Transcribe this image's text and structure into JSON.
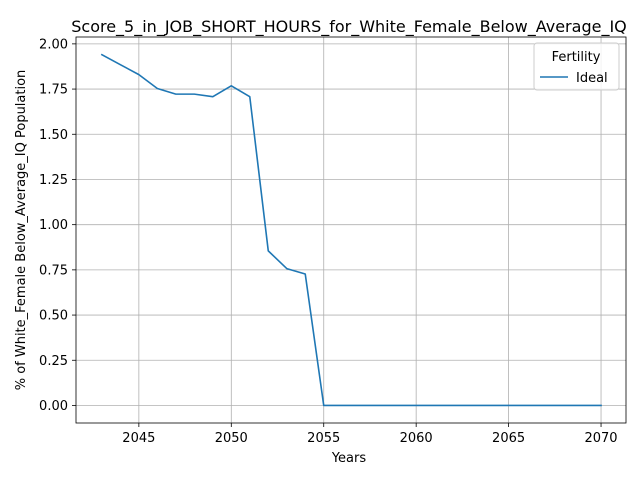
{
  "chart_data": {
    "type": "line",
    "title": "Score_5_in_JOB_SHORT_HOURS_for_White_Female_Below_Average_IQ",
    "xlabel": "Years",
    "ylabel": "% of White_Female Below_Average_IQ Population",
    "xlim": [
      2041.6,
      2071.35
    ],
    "ylim": [
      -0.097,
      2.038
    ],
    "xticks": [
      2045,
      2050,
      2055,
      2060,
      2065,
      2070
    ],
    "xtick_labels": [
      "2045",
      "2050",
      "2055",
      "2060",
      "2065",
      "2070"
    ],
    "yticks": [
      0.0,
      0.25,
      0.5,
      0.75,
      1.0,
      1.25,
      1.5,
      1.75,
      2.0
    ],
    "ytick_labels": [
      "0.00",
      "0.25",
      "0.50",
      "0.75",
      "1.00",
      "1.25",
      "1.50",
      "1.75",
      "2.00"
    ],
    "grid": true,
    "legend": {
      "title": "Fertility",
      "placement": "top-right",
      "entries": [
        "Ideal"
      ]
    },
    "series": [
      {
        "name": "Ideal",
        "color": "#1f77b4",
        "x": [
          2043,
          2044,
          2045,
          2046,
          2047,
          2048,
          2049,
          2050,
          2051,
          2052,
          2053,
          2054,
          2055,
          2056,
          2057,
          2058,
          2059,
          2060,
          2061,
          2062,
          2063,
          2064,
          2065,
          2066,
          2067,
          2068,
          2069,
          2070
        ],
        "y": [
          1.94,
          1.885,
          1.83,
          1.753,
          1.722,
          1.722,
          1.708,
          1.768,
          1.708,
          0.855,
          0.757,
          0.727,
          0.0,
          0.0,
          0.0,
          0.0,
          0.0,
          0.0,
          0.0,
          0.0,
          0.0,
          0.0,
          0.0,
          0.0,
          0.0,
          0.0,
          0.0,
          0.0
        ]
      }
    ]
  }
}
